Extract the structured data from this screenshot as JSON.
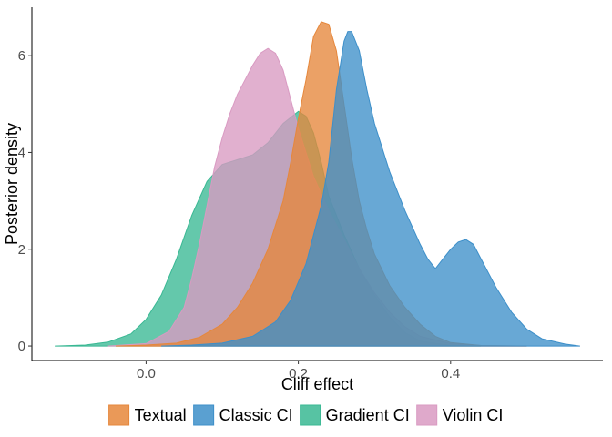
{
  "chart_data": {
    "type": "area",
    "xlabel": "Cliff effect",
    "ylabel": "Posterior density",
    "xlim": [
      -0.15,
      0.6
    ],
    "ylim": [
      -0.3,
      7.0
    ],
    "x_ticks": [
      0.0,
      0.2,
      0.4
    ],
    "x_tick_labels": [
      "0.0",
      "0.2",
      "0.4"
    ],
    "y_ticks": [
      0,
      2,
      4,
      6
    ],
    "y_tick_labels": [
      "0",
      "2",
      "4",
      "6"
    ],
    "grid": false,
    "legend_position": "bottom",
    "series": [
      {
        "name": "Textual",
        "color": "#e6873b",
        "points": [
          [
            -0.04,
            0
          ],
          [
            0,
            0.02
          ],
          [
            0.04,
            0.06
          ],
          [
            0.07,
            0.18
          ],
          [
            0.1,
            0.45
          ],
          [
            0.12,
            0.8
          ],
          [
            0.14,
            1.3
          ],
          [
            0.16,
            2.0
          ],
          [
            0.18,
            3.0
          ],
          [
            0.19,
            3.8
          ],
          [
            0.2,
            4.7
          ],
          [
            0.21,
            5.5
          ],
          [
            0.22,
            6.4
          ],
          [
            0.23,
            6.7
          ],
          [
            0.24,
            6.65
          ],
          [
            0.25,
            6.1
          ],
          [
            0.26,
            5.0
          ],
          [
            0.27,
            3.9
          ],
          [
            0.28,
            3.0
          ],
          [
            0.29,
            2.4
          ],
          [
            0.3,
            1.9
          ],
          [
            0.32,
            1.25
          ],
          [
            0.34,
            0.8
          ],
          [
            0.36,
            0.45
          ],
          [
            0.38,
            0.2
          ],
          [
            0.4,
            0.07
          ],
          [
            0.44,
            0.01
          ],
          [
            0.5,
            0
          ]
        ]
      },
      {
        "name": "Classic CI",
        "color": "#3d8fc9",
        "points": [
          [
            0.02,
            0
          ],
          [
            0.06,
            0.02
          ],
          [
            0.1,
            0.06
          ],
          [
            0.14,
            0.2
          ],
          [
            0.17,
            0.5
          ],
          [
            0.19,
            0.95
          ],
          [
            0.21,
            1.7
          ],
          [
            0.23,
            2.9
          ],
          [
            0.24,
            3.8
          ],
          [
            0.25,
            5.3
          ],
          [
            0.26,
            6.3
          ],
          [
            0.265,
            6.5
          ],
          [
            0.27,
            6.5
          ],
          [
            0.28,
            6.1
          ],
          [
            0.29,
            5.3
          ],
          [
            0.3,
            4.6
          ],
          [
            0.32,
            3.6
          ],
          [
            0.34,
            2.8
          ],
          [
            0.36,
            2.1
          ],
          [
            0.37,
            1.8
          ],
          [
            0.38,
            1.6
          ],
          [
            0.39,
            1.8
          ],
          [
            0.4,
            2.0
          ],
          [
            0.41,
            2.15
          ],
          [
            0.42,
            2.2
          ],
          [
            0.43,
            2.1
          ],
          [
            0.44,
            1.8
          ],
          [
            0.46,
            1.2
          ],
          [
            0.48,
            0.7
          ],
          [
            0.5,
            0.35
          ],
          [
            0.52,
            0.15
          ],
          [
            0.55,
            0.04
          ],
          [
            0.57,
            0
          ]
        ]
      },
      {
        "name": "Gradient CI",
        "color": "#39b893",
        "points": [
          [
            -0.12,
            0
          ],
          [
            -0.08,
            0.02
          ],
          [
            -0.05,
            0.08
          ],
          [
            -0.02,
            0.25
          ],
          [
            0,
            0.55
          ],
          [
            0.02,
            1.05
          ],
          [
            0.04,
            1.8
          ],
          [
            0.06,
            2.7
          ],
          [
            0.08,
            3.4
          ],
          [
            0.1,
            3.75
          ],
          [
            0.12,
            3.85
          ],
          [
            0.14,
            3.95
          ],
          [
            0.16,
            4.2
          ],
          [
            0.18,
            4.6
          ],
          [
            0.2,
            4.85
          ],
          [
            0.21,
            4.75
          ],
          [
            0.22,
            4.4
          ],
          [
            0.23,
            3.8
          ],
          [
            0.24,
            3.1
          ],
          [
            0.26,
            2.3
          ],
          [
            0.28,
            1.6
          ],
          [
            0.3,
            1.05
          ],
          [
            0.32,
            0.6
          ],
          [
            0.34,
            0.28
          ],
          [
            0.36,
            0.1
          ],
          [
            0.4,
            0.01
          ],
          [
            0.44,
            0
          ]
        ]
      },
      {
        "name": "Violin CI",
        "color": "#d99ac2",
        "points": [
          [
            -0.05,
            0
          ],
          [
            0,
            0.05
          ],
          [
            0.03,
            0.3
          ],
          [
            0.05,
            0.8
          ],
          [
            0.06,
            1.4
          ],
          [
            0.07,
            2.1
          ],
          [
            0.08,
            2.9
          ],
          [
            0.09,
            3.7
          ],
          [
            0.1,
            4.3
          ],
          [
            0.11,
            4.8
          ],
          [
            0.12,
            5.2
          ],
          [
            0.13,
            5.5
          ],
          [
            0.14,
            5.8
          ],
          [
            0.15,
            6.05
          ],
          [
            0.16,
            6.15
          ],
          [
            0.17,
            6.05
          ],
          [
            0.18,
            5.7
          ],
          [
            0.19,
            5.1
          ],
          [
            0.2,
            4.5
          ],
          [
            0.22,
            3.5
          ],
          [
            0.24,
            2.8
          ],
          [
            0.26,
            2.2
          ],
          [
            0.28,
            1.6
          ],
          [
            0.3,
            1.1
          ],
          [
            0.32,
            0.7
          ],
          [
            0.34,
            0.4
          ],
          [
            0.36,
            0.2
          ],
          [
            0.4,
            0.05
          ],
          [
            0.44,
            0.01
          ],
          [
            0.5,
            0
          ]
        ]
      }
    ],
    "layer_order": [
      "Gradient CI",
      "Violin CI",
      "Textual",
      "Classic CI"
    ]
  }
}
